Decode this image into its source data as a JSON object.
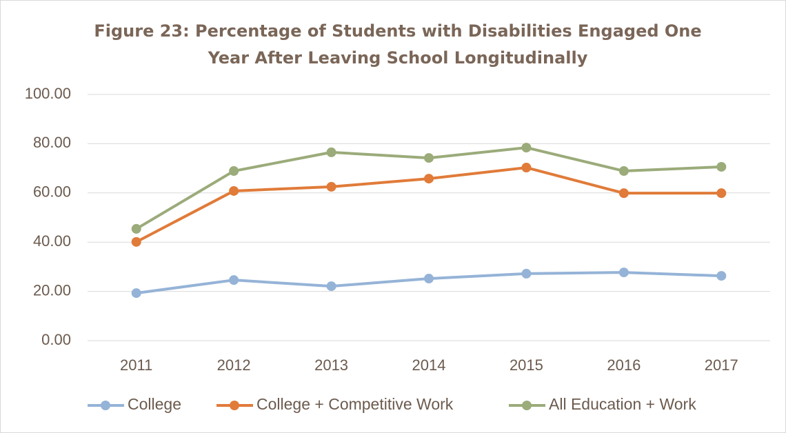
{
  "chart_data": {
    "type": "line",
    "title": [
      "Figure 23: Percentage of Students with Disabilities Engaged One",
      "Year After Leaving School Longitudinally"
    ],
    "categories": [
      "2011",
      "2012",
      "2013",
      "2014",
      "2015",
      "2016",
      "2017"
    ],
    "series": [
      {
        "name": "College",
        "color": "#95b3d7",
        "values": [
          19.3,
          24.6,
          22.1,
          25.2,
          27.2,
          27.7,
          26.3
        ]
      },
      {
        "name": "College + Competitive Work",
        "color": "#e07b39",
        "values": [
          40.1,
          60.8,
          62.5,
          65.8,
          70.3,
          59.9,
          59.9
        ]
      },
      {
        "name": "All Education + Work",
        "color": "#9bab7a",
        "values": [
          45.4,
          68.9,
          76.5,
          74.2,
          78.4,
          68.9,
          70.6
        ]
      }
    ],
    "ylim": [
      0,
      100
    ],
    "yticks": [
      {
        "value": 0,
        "label": "0.00"
      },
      {
        "value": 20,
        "label": "20.00"
      },
      {
        "value": 40,
        "label": "40.00"
      },
      {
        "value": 60,
        "label": "60.00"
      },
      {
        "value": 80,
        "label": "80.00"
      },
      {
        "value": 100,
        "label": "100.00"
      }
    ],
    "grid": true,
    "legend": "bottom"
  }
}
